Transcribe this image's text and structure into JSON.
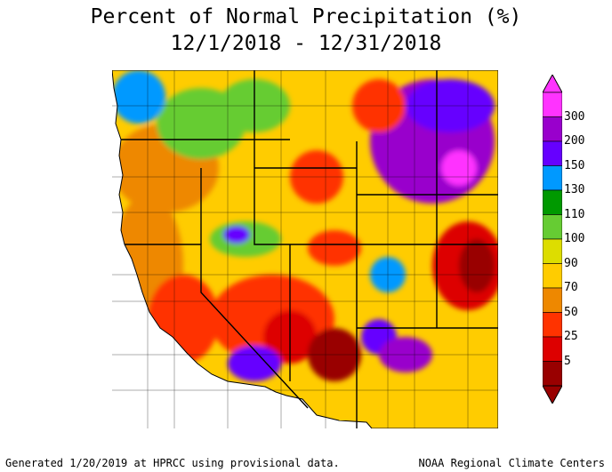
{
  "title": {
    "line1": "Percent of Normal Precipitation (%)",
    "line2": "12/1/2018 - 12/31/2018"
  },
  "legend": {
    "breaks": [
      "300",
      "200",
      "150",
      "130",
      "110",
      "100",
      "90",
      "70",
      "50",
      "25",
      "5"
    ],
    "colors": [
      "#ff33ff",
      "#9900cc",
      "#6600ff",
      "#0099ff",
      "#009900",
      "#66cc33",
      "#dddd00",
      "#ffcc00",
      "#ee8800",
      "#ff3300",
      "#dd0000",
      "#990000"
    ]
  },
  "footer": {
    "left": "Generated 1/20/2019 at HPRCC using provisional data.",
    "right": "NOAA Regional Climate Centers"
  }
}
